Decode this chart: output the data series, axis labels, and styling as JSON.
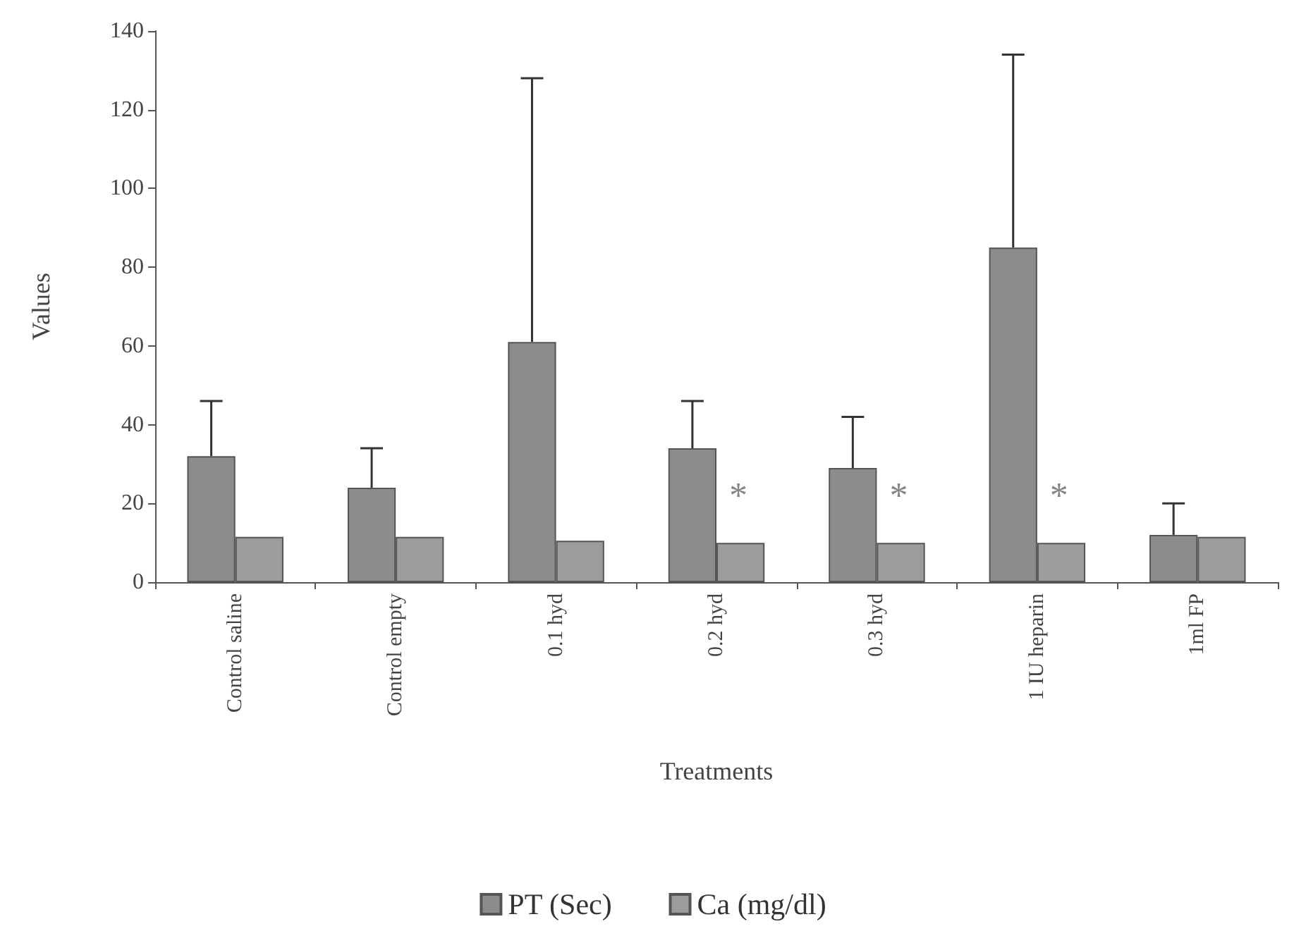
{
  "chart_data": {
    "type": "bar",
    "xlabel": "Treatments",
    "ylabel": "Values",
    "categories": [
      "Control saline",
      "Control empty",
      "0.1 hyd",
      "0.2 hyd",
      "0.3 hyd",
      "1 IU heparin",
      "1ml FP"
    ],
    "series": [
      {
        "name": "PT (Sec)",
        "color": "#8c8c8c",
        "values": [
          32,
          24,
          61,
          34,
          29,
          85,
          12
        ],
        "errors": [
          [
            32,
            46
          ],
          [
            24,
            34
          ],
          [
            61,
            128
          ],
          [
            34,
            46
          ],
          [
            29,
            42
          ],
          [
            85,
            134
          ],
          [
            12,
            20
          ]
        ]
      },
      {
        "name": "Ca (mg/dl)",
        "color": "#9c9c9c",
        "values": [
          11.5,
          11.5,
          10.5,
          10,
          10,
          10,
          11.5
        ]
      }
    ],
    "annotations": [
      {
        "text": "*",
        "x": "0.2 hyd",
        "y": 22
      },
      {
        "text": "*",
        "x": "0.3 hyd",
        "y": 22
      },
      {
        "text": "*",
        "x": "1 IU heparin",
        "y": 22
      }
    ],
    "ylim": [
      0,
      140
    ],
    "yticks": [
      0,
      20,
      40,
      60,
      80,
      100,
      120,
      140
    ],
    "grid": false,
    "legend": "bottom"
  }
}
